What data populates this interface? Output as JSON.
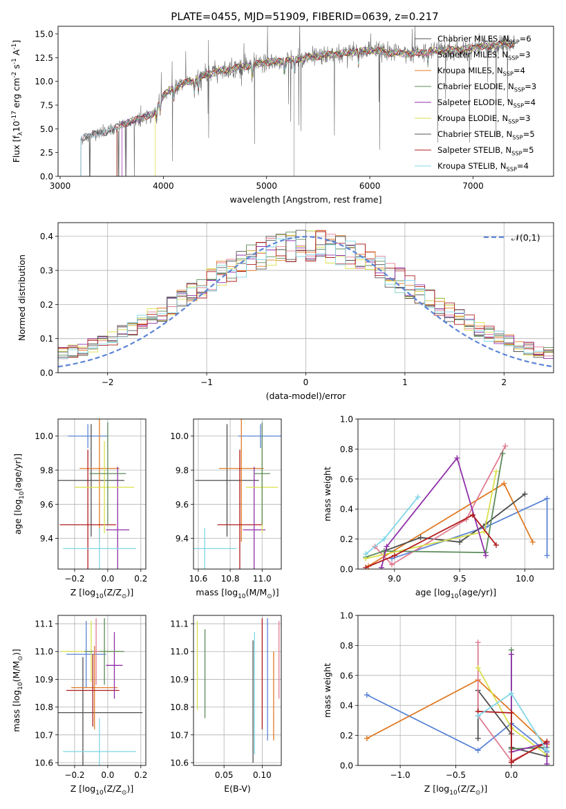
{
  "figure_title": "PLATE=0455, MJD=51909, FIBERID=0639, z=0.217",
  "series_colors": [
    "#4d4d4d",
    "#e07b91",
    "#e07a24",
    "#5a8a5a",
    "#8e2fa8",
    "#d9e04a",
    "#555555",
    "#b01c1c",
    "#7fd6e6"
  ],
  "chart_data": [
    {
      "id": "spectrum",
      "type": "line",
      "xlabel": "wavelength [Angstrom, rest frame]",
      "ylabel": "Flux [f$_\\lambda$10$^{-17}$ erg cm$^{-2}$ s$^{-1}$ A$^{-1}$]",
      "xlim": [
        2980,
        7780
      ],
      "ylim": [
        0,
        15.8
      ],
      "xticks": [
        3000,
        4000,
        5000,
        6000,
        7000
      ],
      "yticks": [
        0.0,
        2.5,
        5.0,
        7.5,
        10.0,
        12.5,
        15.0
      ],
      "legend_position": "upper-right",
      "legend": [
        {
          "label": "Chabrier MILES, N$_{SSP}$=6",
          "color": "#4d4d4d"
        },
        {
          "label": "Salpeter MILES, N$_{SSP}$=3",
          "color": "#e07b91"
        },
        {
          "label": "Kroupa MILES, N$_{SSP}$=4",
          "color": "#e07a24"
        },
        {
          "label": "Chabrier ELODIE, N$_{SSP}$=3",
          "color": "#5a8a5a"
        },
        {
          "label": "Salpeter ELODIE, N$_{SSP}$=4",
          "color": "#8e2fa8"
        },
        {
          "label": "Kroupa ELODIE, N$_{SSP}$=3",
          "color": "#d9e04a"
        },
        {
          "label": "Chabrier STELIB, N$_{SSP}$=5",
          "color": "#555555"
        },
        {
          "label": "Salpeter STELIB, N$_{SSP}$=5",
          "color": "#b01c1c"
        },
        {
          "label": "Kroupa STELIB, N$_{SSP}$=4",
          "color": "#7fd6e6"
        }
      ],
      "continuum": {
        "x": [
          3200,
          3300,
          3400,
          3500,
          3600,
          3700,
          3800,
          3900,
          4000,
          4100,
          4200,
          4300,
          4400,
          4500,
          4600,
          4700,
          4800,
          4900,
          5000,
          5200,
          5400,
          5600,
          5800,
          6000,
          6200,
          6400,
          6600,
          6800,
          7000,
          7200,
          7400
        ],
        "y": [
          4.0,
          4.3,
          4.6,
          4.8,
          5.5,
          5.8,
          6.2,
          6.5,
          8.5,
          9.3,
          9.8,
          10.1,
          10.6,
          11.0,
          11.2,
          11.4,
          11.6,
          11.8,
          12.0,
          12.2,
          12.5,
          12.8,
          13.0,
          13.3,
          13.0,
          12.9,
          13.2,
          13.3,
          13.5,
          13.8,
          14.0
        ]
      },
      "model_start_wavelengths": [
        3200,
        3200,
        3550,
        3550,
        3600,
        3920,
        3200,
        3550,
        3200
      ]
    },
    {
      "id": "residuals",
      "type": "histogram",
      "xlabel": "(data-model)/error",
      "ylabel": "Normed distribution",
      "xlim": [
        -2.5,
        2.5
      ],
      "ylim": [
        0,
        0.44
      ],
      "xticks": [
        -2,
        -1,
        0,
        1,
        2
      ],
      "yticks": [
        0.0,
        0.1,
        0.2,
        0.3,
        0.4
      ],
      "bin_width": 0.1,
      "reference_curve": {
        "label": "$\\mathcal{N}(0,1)$",
        "mu": 0,
        "sigma": 1,
        "color": "#5b84d6",
        "style": "dashed"
      },
      "legend_position": "upper-right"
    },
    {
      "id": "age-vs-Z",
      "type": "errorbar",
      "xlabel": "Z [log$_{10}$(Z/Z$_\\odot$)]",
      "ylabel": "age  [log$_{10}$(age/yr)]",
      "xlim": [
        -0.3,
        0.23
      ],
      "ylim": [
        9.22,
        10.1
      ],
      "xticks": [
        -0.2,
        0.0,
        0.2
      ],
      "yticks": [
        9.4,
        9.6,
        9.8,
        10.0
      ],
      "points": [
        {
          "color": "#5b84d6",
          "x": -0.12,
          "y": 10.0,
          "xerr": 0.12,
          "yerr": 0.07
        },
        {
          "color": "#4d4d4d",
          "x": -0.1,
          "y": 9.74,
          "xerr": 0.2,
          "yerr": 0.33
        },
        {
          "color": "#e07a24",
          "x": -0.05,
          "y": 9.81,
          "xerr": 0.12,
          "yerr": 0.43
        },
        {
          "color": "#b01c1c",
          "x": -0.12,
          "y": 9.48,
          "xerr": 0.17,
          "yerr": 0.44
        },
        {
          "color": "#8e2fa8",
          "x": 0.06,
          "y": 9.45,
          "xerr": 0.07,
          "yerr": 0.37
        },
        {
          "color": "#d9e04a",
          "x": -0.02,
          "y": 9.7,
          "xerr": 0.18,
          "yerr": 0.27
        },
        {
          "color": "#5a8a5a",
          "x": 0.0,
          "y": 9.78,
          "xerr": 0.11,
          "yerr": 0.3
        },
        {
          "color": "#7fd6e6",
          "x": -0.05,
          "y": 9.34,
          "xerr": 0.22,
          "yerr": 0.12
        }
      ]
    },
    {
      "id": "age-vs-mass",
      "type": "errorbar",
      "xlabel": "mass [log$_{10}$(M/M$_\\odot$)]",
      "ylabel": "",
      "xlim": [
        10.57,
        11.12
      ],
      "ylim": [
        9.22,
        10.1
      ],
      "xticks": [
        10.6,
        10.8,
        11.0
      ],
      "yticks": [
        9.4,
        9.6,
        9.8,
        10.0
      ],
      "points": [
        {
          "color": "#5b84d6",
          "x": 10.99,
          "y": 10.0,
          "xerr": 0.14,
          "yerr": 0.07
        },
        {
          "color": "#4d4d4d",
          "x": 10.78,
          "y": 9.74,
          "xerr": 0.2,
          "yerr": 0.33
        },
        {
          "color": "#e07a24",
          "x": 10.87,
          "y": 9.81,
          "xerr": 0.14,
          "yerr": 0.43
        },
        {
          "color": "#b01c1c",
          "x": 10.86,
          "y": 9.48,
          "xerr": 0.14,
          "yerr": 0.44
        },
        {
          "color": "#8e2fa8",
          "x": 10.95,
          "y": 9.45,
          "xerr": 0.07,
          "yerr": 0.37
        },
        {
          "color": "#d9e04a",
          "x": 11.0,
          "y": 9.7,
          "xerr": 0.1,
          "yerr": 0.27
        },
        {
          "color": "#5a8a5a",
          "x": 11.0,
          "y": 9.78,
          "xerr": 0.05,
          "yerr": 0.3
        },
        {
          "color": "#7fd6e6",
          "x": 10.64,
          "y": 9.34,
          "xerr": 0.2,
          "yerr": 0.12
        }
      ]
    },
    {
      "id": "weight-vs-age",
      "type": "line",
      "xlabel": "age  [log$_{10}$(age/yr)]",
      "ylabel": "mass weight",
      "xlim": [
        8.72,
        10.22
      ],
      "ylim": [
        0,
        1.0
      ],
      "xticks": [
        9.0,
        9.5,
        10.0
      ],
      "yticks": [
        0.0,
        0.2,
        0.4,
        0.6,
        0.8,
        1.0
      ],
      "series": [
        {
          "color": "#5b84d6",
          "x": [
            10.17,
            10.17,
            9.7,
            8.98
          ],
          "y": [
            0.09,
            0.47,
            0.28,
            0.07
          ]
        },
        {
          "color": "#e07a24",
          "x": [
            10.06,
            9.84,
            8.8
          ],
          "y": [
            0.18,
            0.57,
            0.02
          ]
        },
        {
          "color": "#4d4d4d",
          "x": [
            10.0,
            9.7,
            9.5,
            9.2,
            8.92
          ],
          "y": [
            0.5,
            0.3,
            0.18,
            0.21,
            0.12
          ]
        },
        {
          "color": "#e07b91",
          "x": [
            9.85,
            9.55,
            8.98,
            8.85
          ],
          "y": [
            0.82,
            0.33,
            0.03,
            0.15
          ]
        },
        {
          "color": "#5a8a5a",
          "x": [
            9.83,
            9.7,
            8.92,
            8.78
          ],
          "y": [
            0.77,
            0.11,
            0.12,
            0.08
          ]
        },
        {
          "color": "#d9e04a",
          "x": [
            9.78,
            9.69,
            8.78
          ],
          "y": [
            0.65,
            0.25,
            0.07
          ]
        },
        {
          "color": "#8e2fa8",
          "x": [
            9.7,
            9.48,
            8.94,
            8.9
          ],
          "y": [
            0.09,
            0.74,
            0.15,
            0.01
          ]
        },
        {
          "color": "#b01c1c",
          "x": [
            9.78,
            9.6,
            9.0,
            8.78
          ],
          "y": [
            0.16,
            0.36,
            0.09,
            0.01
          ]
        },
        {
          "color": "#7fd6e6",
          "x": [
            9.18,
            8.92,
            8.78
          ],
          "y": [
            0.48,
            0.2,
            0.1
          ]
        }
      ]
    },
    {
      "id": "mass-vs-Z",
      "type": "errorbar",
      "xlabel": "Z [log$_{10}$(Z/Z$_\\odot$)]",
      "ylabel": "mass [log$_{10}$(M/M$_\\odot$)]",
      "xlim": [
        -0.3,
        0.23
      ],
      "ylim": [
        10.59,
        11.13
      ],
      "xticks": [
        -0.2,
        0.0,
        0.2
      ],
      "yticks": [
        10.6,
        10.7,
        10.8,
        10.9,
        11.0,
        11.1
      ],
      "points": [
        {
          "color": "#5b84d6",
          "x": -0.13,
          "y": 10.99,
          "xerr": 0.12,
          "yerr": 0.12
        },
        {
          "color": "#4d4d4d",
          "x": -0.15,
          "y": 10.78,
          "xerr": 0.36,
          "yerr": 0.2
        },
        {
          "color": "#e07a24",
          "x": -0.08,
          "y": 10.87,
          "xerr": 0.14,
          "yerr": 0.15
        },
        {
          "color": "#b01c1c",
          "x": -0.09,
          "y": 10.86,
          "xerr": 0.16,
          "yerr": 0.13
        },
        {
          "color": "#8e2fa8",
          "x": 0.04,
          "y": 10.95,
          "xerr": 0.05,
          "yerr": 0.12
        },
        {
          "color": "#d9e04a",
          "x": -0.1,
          "y": 11.0,
          "xerr": 0.18,
          "yerr": 0.11
        },
        {
          "color": "#5a8a5a",
          "x": -0.02,
          "y": 11.0,
          "xerr": 0.12,
          "yerr": 0.12
        },
        {
          "color": "#7fd6e6",
          "x": -0.05,
          "y": 10.64,
          "xerr": 0.22,
          "yerr": 0.12
        },
        {
          "color": "#e07b91",
          "x": -0.07,
          "y": 11.0,
          "xerr": 0.02,
          "yerr": 0.12
        }
      ]
    },
    {
      "id": "mass-vs-EBV",
      "type": "errorbar",
      "xlabel": "E(B-V)",
      "ylabel": "",
      "xlim": [
        0.01,
        0.125
      ],
      "ylim": [
        10.59,
        11.13
      ],
      "xticks": [
        0.05,
        0.1
      ],
      "yticks": [
        10.6,
        10.7,
        10.8,
        10.9,
        11.0,
        11.1
      ],
      "points": [
        {
          "color": "#d9e04a",
          "x": 0.015,
          "y": 10.95,
          "xerr": 0,
          "yerr": 0.16
        },
        {
          "color": "#5a8a5a",
          "x": 0.025,
          "y": 10.92,
          "xerr": 0,
          "yerr": 0.16
        },
        {
          "color": "#4d4d4d",
          "x": 0.088,
          "y": 10.82,
          "xerr": 0,
          "yerr": 0.22
        },
        {
          "color": "#7fd6e6",
          "x": 0.09,
          "y": 10.85,
          "xerr": 0,
          "yerr": 0.22
        },
        {
          "color": "#b01c1c",
          "x": 0.1,
          "y": 10.92,
          "xerr": 0,
          "yerr": 0.2
        },
        {
          "color": "#5b84d6",
          "x": 0.107,
          "y": 10.9,
          "xerr": 0,
          "yerr": 0.22
        },
        {
          "color": "#e07a24",
          "x": 0.115,
          "y": 10.84,
          "xerr": 0,
          "yerr": 0.16
        },
        {
          "color": "#e07b91",
          "x": 0.122,
          "y": 10.97,
          "xerr": 0,
          "yerr": 0.14
        }
      ]
    },
    {
      "id": "weight-vs-Z",
      "type": "line",
      "xlabel": "Z [log$_{10}$(Z/Z$_\\odot$)]",
      "ylabel": "mass weight",
      "xlim": [
        -1.38,
        0.38
      ],
      "ylim": [
        0,
        1.0
      ],
      "xticks": [
        -1.0,
        -0.5,
        0.0
      ],
      "yticks": [
        0.0,
        0.2,
        0.4,
        0.6,
        0.8,
        1.0
      ],
      "series": [
        {
          "color": "#5b84d6",
          "x": [
            -1.3,
            -0.3,
            0.0,
            0.32
          ],
          "y": [
            0.47,
            0.1,
            0.28,
            0.09
          ]
        },
        {
          "color": "#e07a24",
          "x": [
            -1.3,
            -0.3,
            0.32
          ],
          "y": [
            0.18,
            0.57,
            0.14
          ]
        },
        {
          "color": "#4d4d4d",
          "x": [
            -0.3,
            -0.3,
            0.0,
            0.0,
            0.32
          ],
          "y": [
            0.18,
            0.5,
            0.21,
            0.12,
            0.06
          ]
        },
        {
          "color": "#e07b91",
          "x": [
            -0.3,
            -0.3,
            0.0,
            0.32
          ],
          "y": [
            0.82,
            0.33,
            0.03,
            0.15
          ]
        },
        {
          "color": "#5a8a5a",
          "x": [
            0.0,
            0.0,
            0.32
          ],
          "y": [
            0.77,
            0.11,
            0.12
          ]
        },
        {
          "color": "#d9e04a",
          "x": [
            -0.3,
            0.0,
            0.32
          ],
          "y": [
            0.65,
            0.25,
            0.07
          ]
        },
        {
          "color": "#8e2fa8",
          "x": [
            0.0,
            0.0,
            0.32,
            0.32
          ],
          "y": [
            0.74,
            0.09,
            0.15,
            0.01
          ]
        },
        {
          "color": "#b01c1c",
          "x": [
            -0.3,
            0.0,
            0.0,
            0.32
          ],
          "y": [
            0.36,
            0.35,
            0.02,
            0.16
          ]
        },
        {
          "color": "#7fd6e6",
          "x": [
            -0.3,
            0.0,
            0.32
          ],
          "y": [
            0.33,
            0.48,
            0.1
          ]
        }
      ]
    }
  ]
}
